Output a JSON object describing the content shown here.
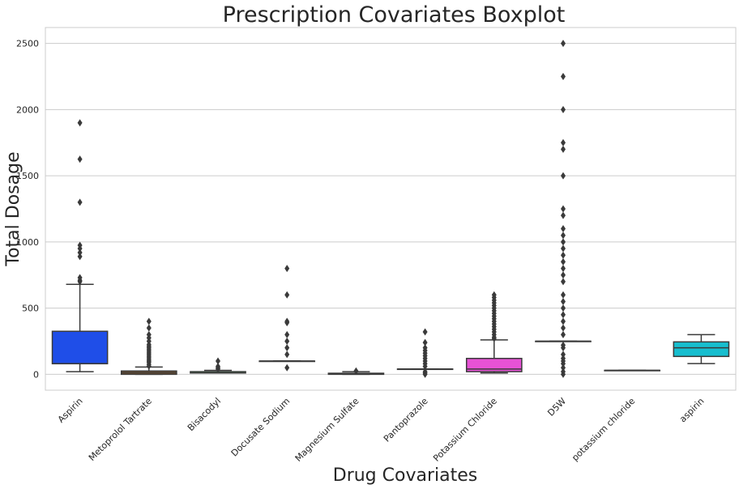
{
  "chart_data": {
    "type": "boxplot",
    "title": "Prescription Covariates Boxplot",
    "xlabel": "Drug Covariates",
    "ylabel": "Total Dosage",
    "ylim": [
      -120,
      2620
    ],
    "yticks": [
      0,
      500,
      1000,
      1500,
      2000,
      2500
    ],
    "grid": true,
    "categories": [
      "Aspirin",
      "Metoprolol Tartrate",
      "Bisacodyl",
      "Docusate Sodium",
      "Magnesium Sulfate",
      "Pantoprazole",
      "Potassium Chloride",
      "D5W",
      "potassium chloride",
      "aspirin"
    ],
    "boxes": [
      {
        "label": "Aspirin",
        "color": "#1f4ee8",
        "whislo": 20,
        "q1": 80,
        "med": 81,
        "q3": 325,
        "whishi": 680,
        "fliers": [
          700,
          710,
          730,
          890,
          920,
          950,
          975,
          1300,
          1625,
          1900
        ]
      },
      {
        "label": "Metoprolol Tartrate",
        "color": "#8a5a2b",
        "whislo": 0,
        "q1": 0,
        "med": 12,
        "q3": 25,
        "whishi": 55,
        "fliers": [
          62,
          75,
          90,
          100,
          112,
          125,
          137,
          150,
          162,
          175,
          187,
          200,
          212,
          225,
          250,
          275,
          300,
          350,
          400
        ]
      },
      {
        "label": "Bisacodyl",
        "color": "#2fa84f",
        "whislo": 10,
        "q1": 10,
        "med": 10,
        "q3": 20,
        "whishi": 30,
        "fliers": [
          40,
          50,
          60,
          100
        ]
      },
      {
        "label": "Docusate Sodium",
        "color": "#d62728",
        "whislo": 100,
        "q1": 100,
        "med": 100,
        "q3": 100,
        "whishi": 100,
        "fliers": [
          50,
          150,
          200,
          250,
          300,
          390,
          400,
          600,
          800
        ]
      },
      {
        "label": "Magnesium Sulfate",
        "color": "#8172b3",
        "whislo": 0,
        "q1": 0,
        "med": 2,
        "q3": 8,
        "whishi": 20,
        "fliers": [
          25
        ]
      },
      {
        "label": "Pantoprazole",
        "color": "#937860",
        "whislo": 40,
        "q1": 40,
        "med": 40,
        "q3": 40,
        "whishi": 40,
        "fliers": [
          0,
          10,
          20,
          60,
          80,
          100,
          120,
          140,
          160,
          180,
          200,
          240,
          320
        ]
      },
      {
        "label": "Potassium Chloride",
        "color": "#e752d6",
        "whislo": 10,
        "q1": 20,
        "med": 40,
        "q3": 120,
        "whishi": 260,
        "fliers": [
          270,
          280,
          300,
          320,
          340,
          360,
          380,
          400,
          420,
          440,
          460,
          480,
          500,
          520,
          540,
          560,
          580,
          600
        ]
      },
      {
        "label": "D5W",
        "color": "#8c8c8c",
        "whislo": 250,
        "q1": 250,
        "med": 250,
        "q3": 250,
        "whishi": 250,
        "fliers": [
          0,
          20,
          50,
          80,
          100,
          120,
          150,
          200,
          220,
          300,
          350,
          400,
          450,
          500,
          550,
          600,
          700,
          750,
          800,
          850,
          900,
          950,
          1000,
          1050,
          1100,
          1200,
          1250,
          1500,
          1700,
          1750,
          2000,
          2250,
          2500
        ]
      },
      {
        "label": "potassium chloride",
        "color": "#bcbd22",
        "whislo": 30,
        "q1": 30,
        "med": 30,
        "q3": 30,
        "whishi": 30,
        "fliers": []
      },
      {
        "label": "aspirin",
        "color": "#17becf",
        "whislo": 81,
        "q1": 135,
        "med": 200,
        "q3": 245,
        "whishi": 300,
        "fliers": []
      }
    ]
  }
}
